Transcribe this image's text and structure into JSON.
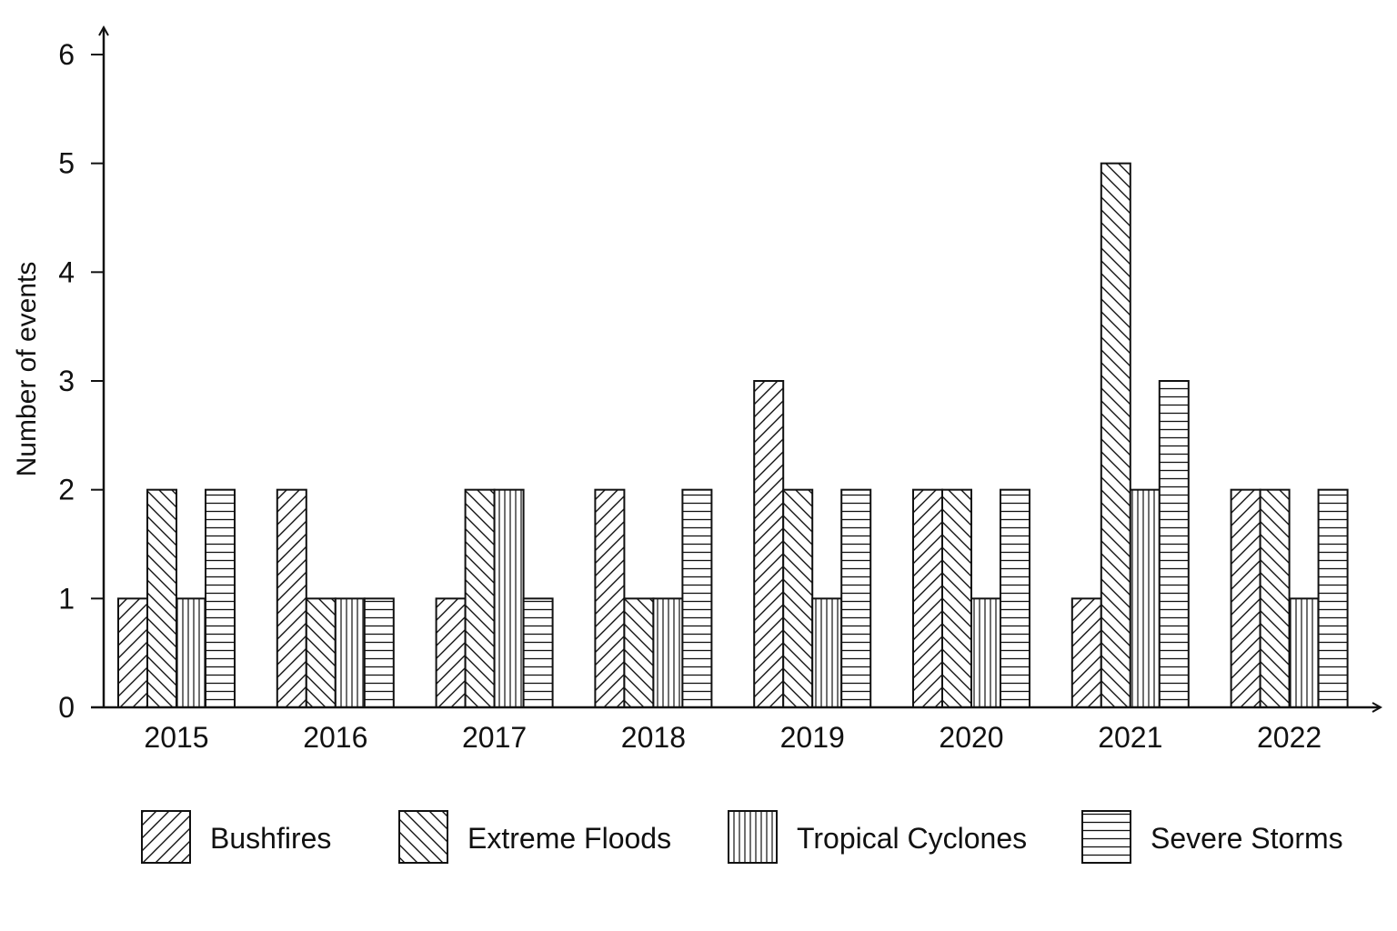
{
  "chart_data": {
    "type": "bar",
    "title": "",
    "xlabel": "",
    "ylabel": "Number of events",
    "ylim": [
      0,
      6
    ],
    "yticks": [
      0,
      1,
      2,
      3,
      4,
      5,
      6
    ],
    "grid": false,
    "legend_position": "bottom",
    "categories": [
      "2015",
      "2016",
      "2017",
      "2018",
      "2019",
      "2020",
      "2021",
      "2022"
    ],
    "series": [
      {
        "name": "Bushfires",
        "pattern": "diagonal-forward",
        "values": [
          1,
          2,
          1,
          2,
          3,
          2,
          1,
          2
        ]
      },
      {
        "name": "Extreme Floods",
        "pattern": "diagonal-backward",
        "values": [
          2,
          1,
          2,
          1,
          2,
          2,
          5,
          2
        ]
      },
      {
        "name": "Tropical Cyclones",
        "pattern": "vertical-lines",
        "values": [
          1,
          1,
          2,
          1,
          1,
          1,
          2,
          1
        ]
      },
      {
        "name": "Severe Storms",
        "pattern": "horizontal-lines",
        "values": [
          2,
          1,
          1,
          2,
          2,
          2,
          3,
          2
        ]
      }
    ],
    "colors": {
      "stroke": "#111111",
      "fill": "#ffffff"
    }
  }
}
